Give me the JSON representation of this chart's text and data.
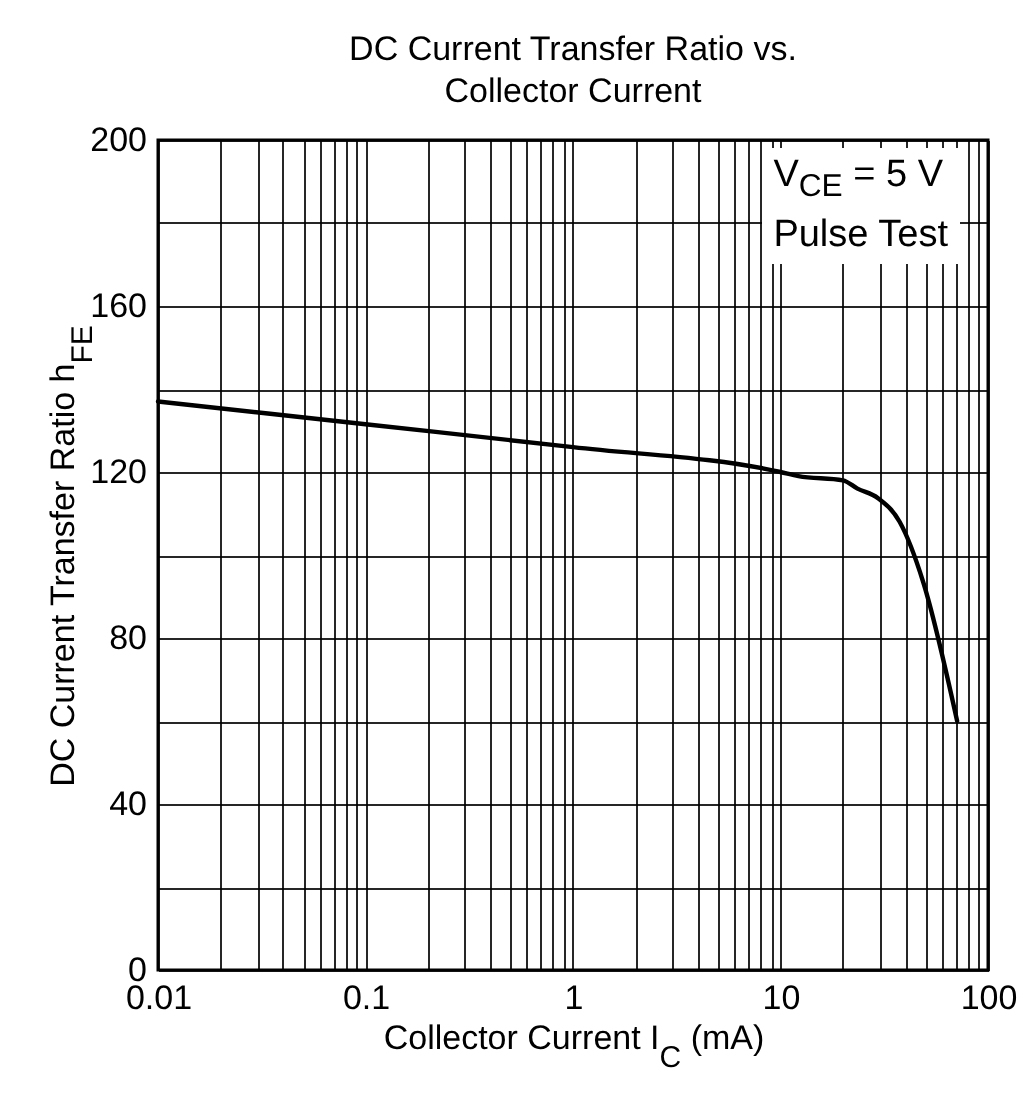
{
  "chart_data": {
    "type": "line",
    "title": "DC Current Transfer Ratio vs.\nCollector Current",
    "xlabel": "Collector Current  I$_{C}$ (mA)",
    "ylabel": "DC Current Transfer Ratio  h$_{FE}$",
    "annotations": [
      "V$_{CE}$ = 5 V",
      "Pulse Test"
    ],
    "x": [
      0.01,
      0.1,
      1,
      10,
      12.2,
      20,
      23.5,
      29.5,
      37.5,
      48.7,
      71
    ],
    "series": [
      {
        "color": "#000000",
        "values": [
          137,
          131.5,
          126,
          120,
          119,
          118,
          116,
          113.7,
          108,
          93.5,
          60
        ]
      }
    ],
    "log": "x",
    "grid": true,
    "marker": "none",
    "line_style": "solid",
    "xlim": [
      0.01,
      100
    ],
    "ylim": [
      0,
      200
    ],
    "xticks": [
      0.01,
      {
        "value": 0.02,
        "label": null
      },
      {
        "value": 0.03,
        "label": null
      },
      {
        "value": 0.04,
        "label": null
      },
      {
        "value": 0.05,
        "label": null
      },
      {
        "value": 0.06,
        "label": null
      },
      {
        "value": 0.07,
        "label": null
      },
      {
        "value": 0.08,
        "label": null
      },
      {
        "value": 0.09,
        "label": null
      },
      0.1,
      {
        "value": 0.2,
        "label": null
      },
      {
        "value": 0.3,
        "label": null
      },
      {
        "value": 0.4,
        "label": null
      },
      {
        "value": 0.5,
        "label": null
      },
      {
        "value": 0.6,
        "label": null
      },
      {
        "value": 0.7,
        "label": null
      },
      {
        "value": 0.8,
        "label": null
      },
      {
        "value": 0.9,
        "label": null
      },
      1,
      {
        "value": 2,
        "label": null
      },
      {
        "value": 3,
        "label": null
      },
      {
        "value": 4,
        "label": null
      },
      {
        "value": 5,
        "label": null
      },
      {
        "value": 6,
        "label": null
      },
      {
        "value": 7,
        "label": null
      },
      {
        "value": 8,
        "label": null
      },
      {
        "value": 9,
        "label": null
      },
      10,
      {
        "value": 20,
        "label": null
      },
      {
        "value": 30,
        "label": null
      },
      {
        "value": 40,
        "label": null
      },
      {
        "value": 50,
        "label": null
      },
      {
        "value": 60,
        "label": null
      },
      {
        "value": 70,
        "label": null
      },
      {
        "value": 80,
        "label": null
      },
      {
        "value": 90,
        "label": null
      },
      100
    ],
    "yticks": [
      0,
      {
        "value": 20,
        "label": null
      },
      40,
      {
        "value": 60,
        "label": null
      },
      80,
      {
        "value": 100,
        "label": null
      },
      120,
      {
        "value": 140,
        "label": null
      },
      160,
      {
        "value": 180,
        "label": null
      },
      200
    ]
  }
}
